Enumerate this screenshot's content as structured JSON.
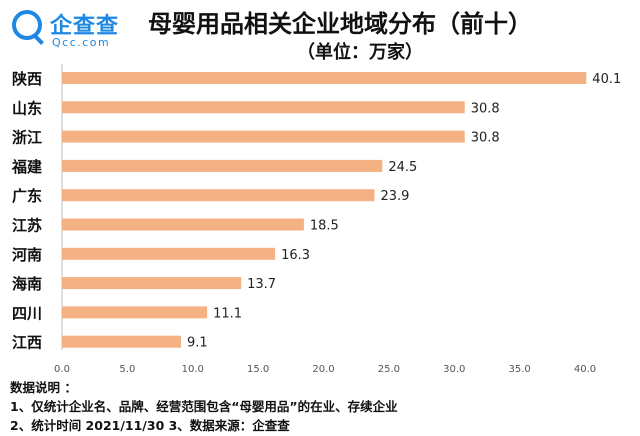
{
  "logo": {
    "name": "企查查",
    "sub": "Qcc.com"
  },
  "chart_data": {
    "type": "bar",
    "orientation": "horizontal",
    "title": "母婴用品相关企业地域分布（前十）",
    "subtitle": "（单位：万家）",
    "categories": [
      "陕西",
      "山东",
      "浙江",
      "福建",
      "广东",
      "江苏",
      "河南",
      "海南",
      "四川",
      "江西"
    ],
    "values": [
      40.1,
      30.8,
      30.8,
      24.5,
      23.9,
      18.5,
      16.3,
      13.7,
      11.1,
      9.1
    ],
    "value_labels": [
      "40.1",
      "30.8",
      "30.8",
      "24.5",
      "23.9",
      "18.5",
      "16.3",
      "13.7",
      "11.1",
      "9.1"
    ],
    "xlim": [
      0,
      40
    ],
    "xticks": [
      "0.0",
      "5.0",
      "10.0",
      "15.0",
      "20.0",
      "25.0",
      "30.0",
      "35.0",
      "40.0"
    ],
    "bar_color": "#f4b183",
    "grid": false
  },
  "notes": {
    "heading": "数据说明 ：",
    "line1": "1、仅统计企业名、品牌、经营范围包含“母婴用品”的在业、存续企业",
    "line2": "2、统计时间  2021/11/30     3、数据来源：企查查"
  }
}
